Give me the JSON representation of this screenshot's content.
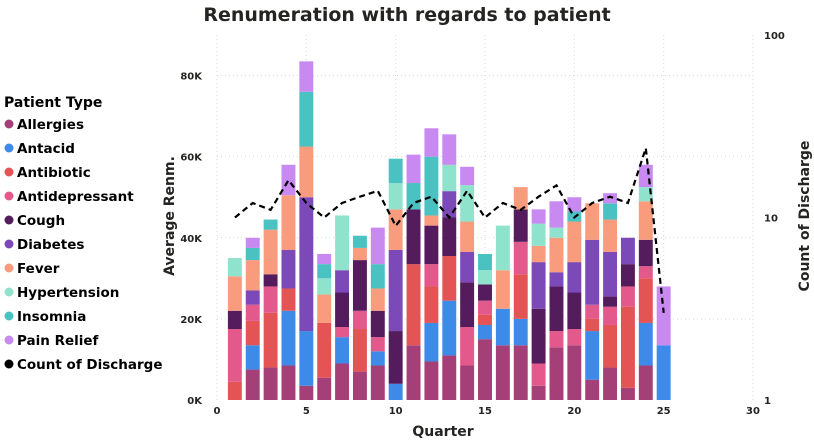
{
  "chart_data": {
    "type": "bar",
    "stacked": true,
    "title": "Renumeration with regards to patient",
    "xlabel": "Quarter",
    "ylabel": "Average Renm.",
    "y2label": "Count of Discharge",
    "xlim": [
      0,
      30
    ],
    "xticks": [
      "0",
      "5",
      "10",
      "15",
      "20",
      "25",
      "30"
    ],
    "ylim": [
      0,
      90000
    ],
    "yticks": [
      {
        "value": 0,
        "label": "0K"
      },
      {
        "value": 20000,
        "label": "20K"
      },
      {
        "value": 40000,
        "label": "40K"
      },
      {
        "value": 60000,
        "label": "60K"
      },
      {
        "value": 80000,
        "label": "80K"
      }
    ],
    "y2scale": "log",
    "y2lim": [
      1,
      100
    ],
    "y2ticks": [
      {
        "value": 1,
        "label": "1"
      },
      {
        "value": 10,
        "label": "10"
      },
      {
        "value": 100,
        "label": "100"
      }
    ],
    "grid": true,
    "legend_title": "Patient Type",
    "legend_position": "left",
    "x": [
      1,
      2,
      3,
      4,
      5,
      6,
      7,
      8,
      9,
      10,
      11,
      12,
      13,
      14,
      15,
      16,
      17,
      18,
      19,
      20,
      21,
      22,
      23,
      24,
      25
    ],
    "series": [
      {
        "name": "Allergies",
        "color": "#A53F78",
        "values": [
          0,
          7500,
          8000,
          8500,
          3500,
          5500,
          9000,
          7000,
          8500,
          0,
          13500,
          9500,
          11000,
          8500,
          15000,
          13500,
          13500,
          3500,
          13000,
          13500,
          5000,
          8000,
          3000,
          8500,
          0
        ]
      },
      {
        "name": "Antacid",
        "color": "#3E8AE8",
        "values": [
          0,
          6000,
          0,
          13500,
          13500,
          0,
          6500,
          0,
          3500,
          4000,
          0,
          9500,
          13500,
          0,
          3500,
          9000,
          6500,
          0,
          0,
          0,
          12000,
          0,
          0,
          10500,
          13500
        ]
      },
      {
        "name": "Antibiotic",
        "color": "#E45454",
        "values": [
          4500,
          6000,
          13500,
          5500,
          0,
          13500,
          0,
          10500,
          0,
          0,
          20000,
          9000,
          11000,
          0,
          2500,
          0,
          11000,
          0,
          0,
          0,
          3000,
          10500,
          20000,
          11000,
          0
        ]
      },
      {
        "name": "Antidepressant",
        "color": "#E3598B",
        "values": [
          13000,
          4000,
          6500,
          0,
          0,
          0,
          2500,
          4500,
          3500,
          0,
          0,
          5500,
          0,
          9500,
          3500,
          0,
          8000,
          5500,
          4000,
          4000,
          3500,
          4500,
          5000,
          3000,
          0
        ]
      },
      {
        "name": "Cough",
        "color": "#541C5C",
        "values": [
          4500,
          0,
          3000,
          0,
          0,
          0,
          8500,
          12500,
          6500,
          13000,
          13500,
          9500,
          9500,
          11000,
          4000,
          0,
          8000,
          13500,
          11000,
          9000,
          0,
          2500,
          5500,
          6500,
          0
        ]
      },
      {
        "name": "Diabetes",
        "color": "#7C4AB8",
        "values": [
          0,
          3500,
          0,
          9500,
          33000,
          0,
          5500,
          0,
          0,
          20000,
          0,
          0,
          6500,
          7500,
          0,
          0,
          0,
          11500,
          3500,
          7500,
          16000,
          11000,
          6500,
          0,
          0
        ]
      },
      {
        "name": "Fever",
        "color": "#F99B7D",
        "values": [
          8500,
          7500,
          11000,
          13500,
          12500,
          7000,
          0,
          3000,
          5500,
          10000,
          0,
          2500,
          0,
          7500,
          0,
          9500,
          5500,
          4000,
          8500,
          10000,
          9000,
          8000,
          0,
          9500,
          0
        ]
      },
      {
        "name": "Hypertension",
        "color": "#8FE3CC",
        "values": [
          4500,
          0,
          0,
          0,
          0,
          4000,
          13500,
          0,
          0,
          6500,
          0,
          0,
          6500,
          9000,
          3500,
          11000,
          0,
          5500,
          2500,
          0,
          0,
          0,
          0,
          3500,
          0
        ]
      },
      {
        "name": "Insomnia",
        "color": "#4AC2C2",
        "values": [
          0,
          3000,
          2500,
          0,
          13500,
          3500,
          0,
          3000,
          6000,
          6000,
          6500,
          14500,
          0,
          0,
          4000,
          0,
          0,
          0,
          0,
          2500,
          0,
          4000,
          0,
          0,
          0
        ]
      },
      {
        "name": "Pain Relief",
        "color": "#C889F0",
        "values": [
          0,
          2500,
          0,
          7500,
          7500,
          2500,
          0,
          0,
          9000,
          0,
          7000,
          7000,
          7500,
          4500,
          0,
          0,
          0,
          3500,
          6500,
          3500,
          0,
          2500,
          0,
          5500,
          14500
        ]
      }
    ],
    "line_series": {
      "name": "Count of Discharge",
      "color": "#000000",
      "axis": "y2",
      "style": "dashed",
      "values": [
        10,
        12,
        11,
        16,
        12,
        10,
        12,
        13,
        14,
        9,
        12,
        13,
        10,
        14,
        10,
        12,
        11,
        13,
        15,
        10,
        12,
        13,
        12,
        24,
        3
      ]
    }
  }
}
